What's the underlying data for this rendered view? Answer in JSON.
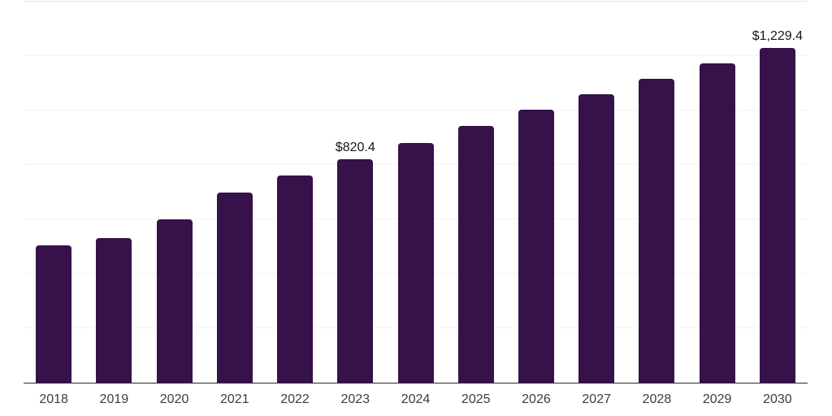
{
  "chart_data": {
    "type": "bar",
    "title": "",
    "xlabel": "",
    "ylabel": "",
    "categories": [
      "2018",
      "2019",
      "2020",
      "2021",
      "2022",
      "2023",
      "2024",
      "2025",
      "2026",
      "2027",
      "2028",
      "2029",
      "2030"
    ],
    "values": [
      505,
      531,
      600,
      700,
      761,
      820.4,
      881,
      943,
      1003,
      1060,
      1116,
      1173,
      1229.4
    ],
    "data_labels": [
      {
        "category": "2023",
        "text": "$820.4"
      },
      {
        "category": "2030",
        "text": "$1,229.4"
      }
    ],
    "ylim": [
      0,
      1400
    ],
    "gridline_step": 200,
    "grid": "horizontal",
    "legend": "none",
    "y_axis_labels_visible": false
  },
  "colors": {
    "bar": "#36114a",
    "gridline": "#f3f3f5",
    "plot_top_border": "#e9e9ec",
    "axis_line": "#2b2b2b",
    "tick_label": "#3d3d3d",
    "data_label": "#161616",
    "background": "#ffffff"
  }
}
